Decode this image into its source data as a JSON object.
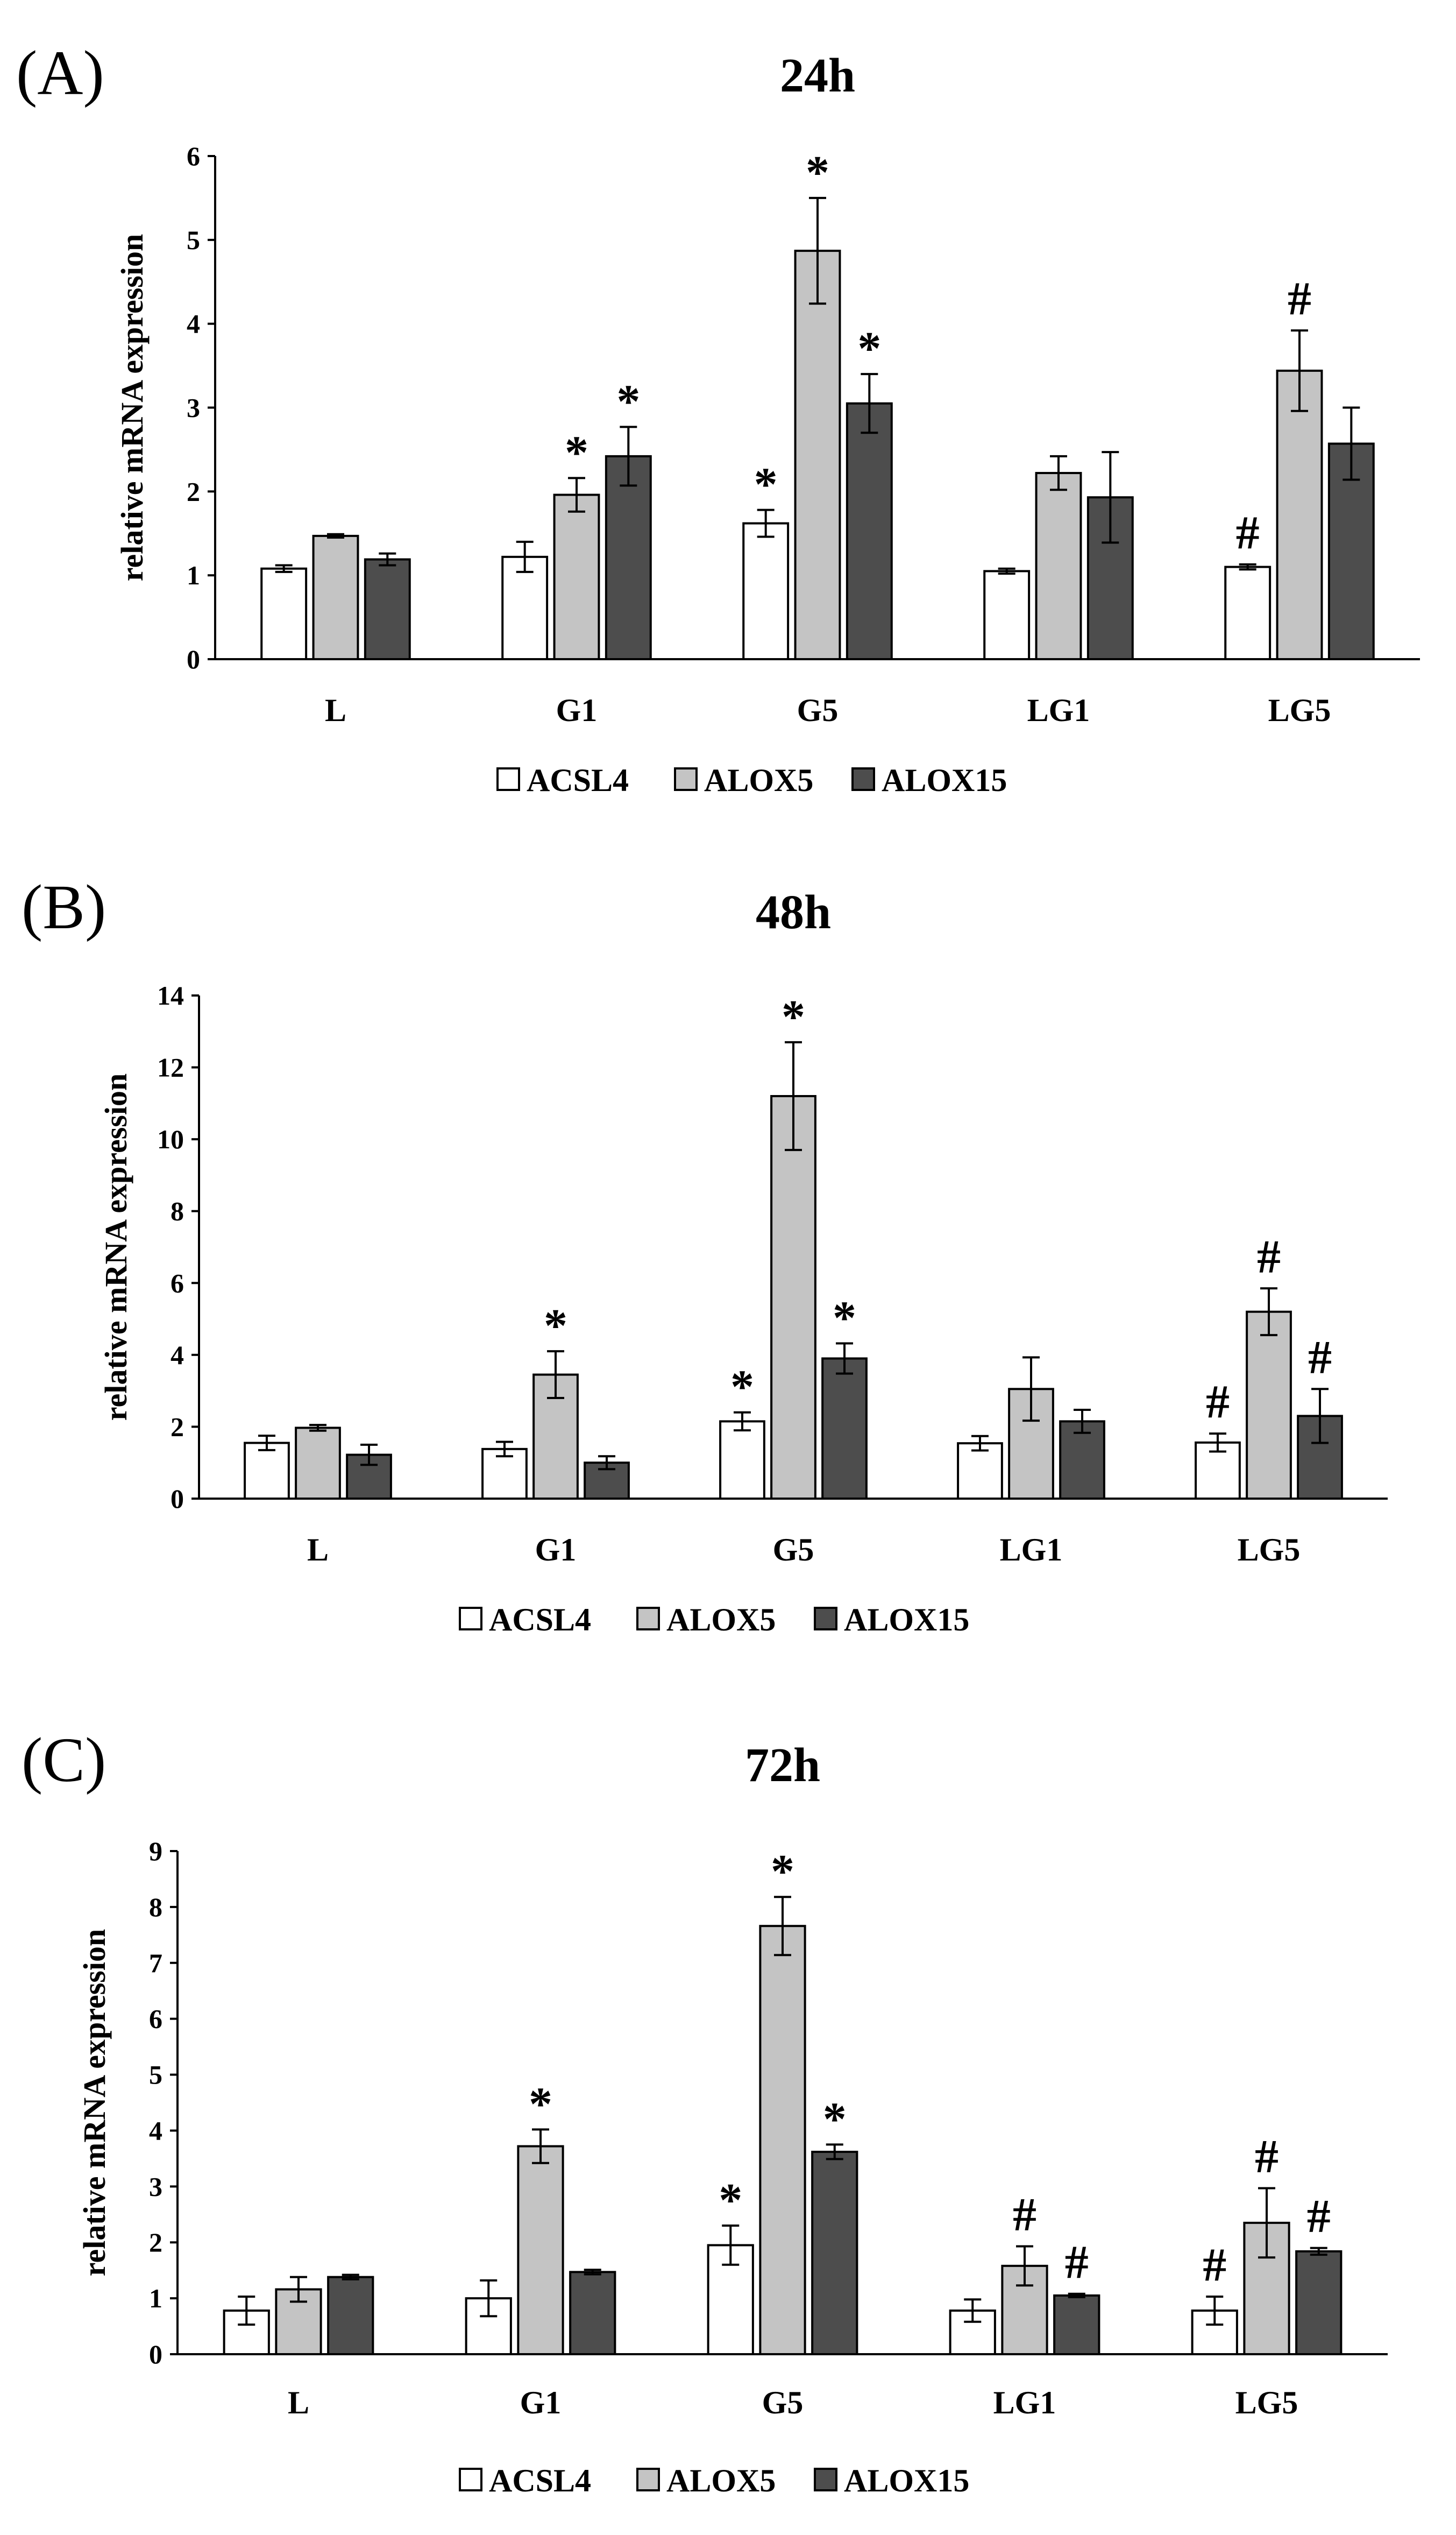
{
  "series_colors": {
    "ACSL4": "#ffffff",
    "ALOX5": "#c4c4c4",
    "ALOX15": "#4d4d4d"
  },
  "chart_data": [
    {
      "panel_label": "(A)",
      "type": "bar",
      "title": "24h",
      "xlabel": "",
      "ylabel": "relative mRNA expression",
      "ylim": [
        0,
        6
      ],
      "yticks": [
        "0",
        "1",
        "2",
        "3",
        "4",
        "5",
        "6"
      ],
      "categories": [
        "L",
        "G1",
        "G5",
        "LG1",
        "LG5"
      ],
      "series": [
        {
          "name": "ACSL4",
          "values": [
            1.08,
            1.22,
            1.62,
            1.05,
            1.1
          ],
          "errors": [
            0.04,
            0.18,
            0.16,
            0.03,
            0.03
          ],
          "marks": [
            "",
            "",
            "*",
            "",
            "#"
          ]
        },
        {
          "name": "ALOX5",
          "values": [
            1.47,
            1.96,
            4.87,
            2.22,
            3.44
          ],
          "errors": [
            0.02,
            0.2,
            0.63,
            0.2,
            0.48
          ],
          "marks": [
            "",
            "*",
            "*",
            "",
            "#"
          ]
        },
        {
          "name": "ALOX15",
          "values": [
            1.19,
            2.42,
            3.05,
            1.93,
            2.57
          ],
          "errors": [
            0.07,
            0.35,
            0.35,
            0.54,
            0.43
          ],
          "marks": [
            "",
            "*",
            "*",
            "",
            ""
          ]
        }
      ],
      "legend": [
        "ACSL4",
        "ALOX5",
        "ALOX15"
      ]
    },
    {
      "panel_label": "(B)",
      "type": "bar",
      "title": "48h",
      "xlabel": "",
      "ylabel": "relative mRNA expression",
      "ylim": [
        0,
        14
      ],
      "yticks": [
        "0",
        "2",
        "4",
        "6",
        "8",
        "10",
        "12",
        "14"
      ],
      "categories": [
        "L",
        "G1",
        "G5",
        "LG1",
        "LG5"
      ],
      "series": [
        {
          "name": "ACSL4",
          "values": [
            1.55,
            1.38,
            2.15,
            1.54,
            1.56
          ],
          "errors": [
            0.2,
            0.2,
            0.25,
            0.2,
            0.25
          ],
          "marks": [
            "",
            "",
            "*",
            "",
            "#"
          ]
        },
        {
          "name": "ALOX5",
          "values": [
            1.97,
            3.45,
            11.2,
            3.05,
            5.2
          ],
          "errors": [
            0.08,
            0.65,
            1.5,
            0.88,
            0.65
          ],
          "marks": [
            "",
            "*",
            "*",
            "",
            "#"
          ]
        },
        {
          "name": "ALOX15",
          "values": [
            1.22,
            1.0,
            3.9,
            2.15,
            2.3
          ],
          "errors": [
            0.28,
            0.18,
            0.42,
            0.32,
            0.75
          ],
          "marks": [
            "",
            "",
            "*",
            "",
            "#"
          ]
        }
      ],
      "legend": [
        "ACSL4",
        "ALOX5",
        "ALOX15"
      ]
    },
    {
      "panel_label": "(C)",
      "type": "bar",
      "title": "72h",
      "xlabel": "",
      "ylabel": "relative mRNA expression",
      "ylim": [
        0,
        9
      ],
      "yticks": [
        "0",
        "1",
        "2",
        "3",
        "4",
        "5",
        "6",
        "7",
        "8",
        "9"
      ],
      "categories": [
        "L",
        "G1",
        "G5",
        "LG1",
        "LG5"
      ],
      "series": [
        {
          "name": "ACSL4",
          "values": [
            0.78,
            1.0,
            1.95,
            0.78,
            0.78
          ],
          "errors": [
            0.25,
            0.32,
            0.35,
            0.2,
            0.25
          ],
          "marks": [
            "",
            "",
            "*",
            "",
            "#"
          ]
        },
        {
          "name": "ALOX5",
          "values": [
            1.16,
            3.72,
            7.66,
            1.58,
            2.35
          ],
          "errors": [
            0.22,
            0.3,
            0.52,
            0.35,
            0.62
          ],
          "marks": [
            "",
            "*",
            "*",
            "#",
            "#"
          ]
        },
        {
          "name": "ALOX15",
          "values": [
            1.38,
            1.47,
            3.62,
            1.05,
            1.84
          ],
          "errors": [
            0.04,
            0.04,
            0.13,
            0.03,
            0.06
          ],
          "marks": [
            "",
            "",
            "*",
            "#",
            "#"
          ]
        }
      ],
      "legend": [
        "ACSL4",
        "ALOX5",
        "ALOX15"
      ]
    }
  ]
}
